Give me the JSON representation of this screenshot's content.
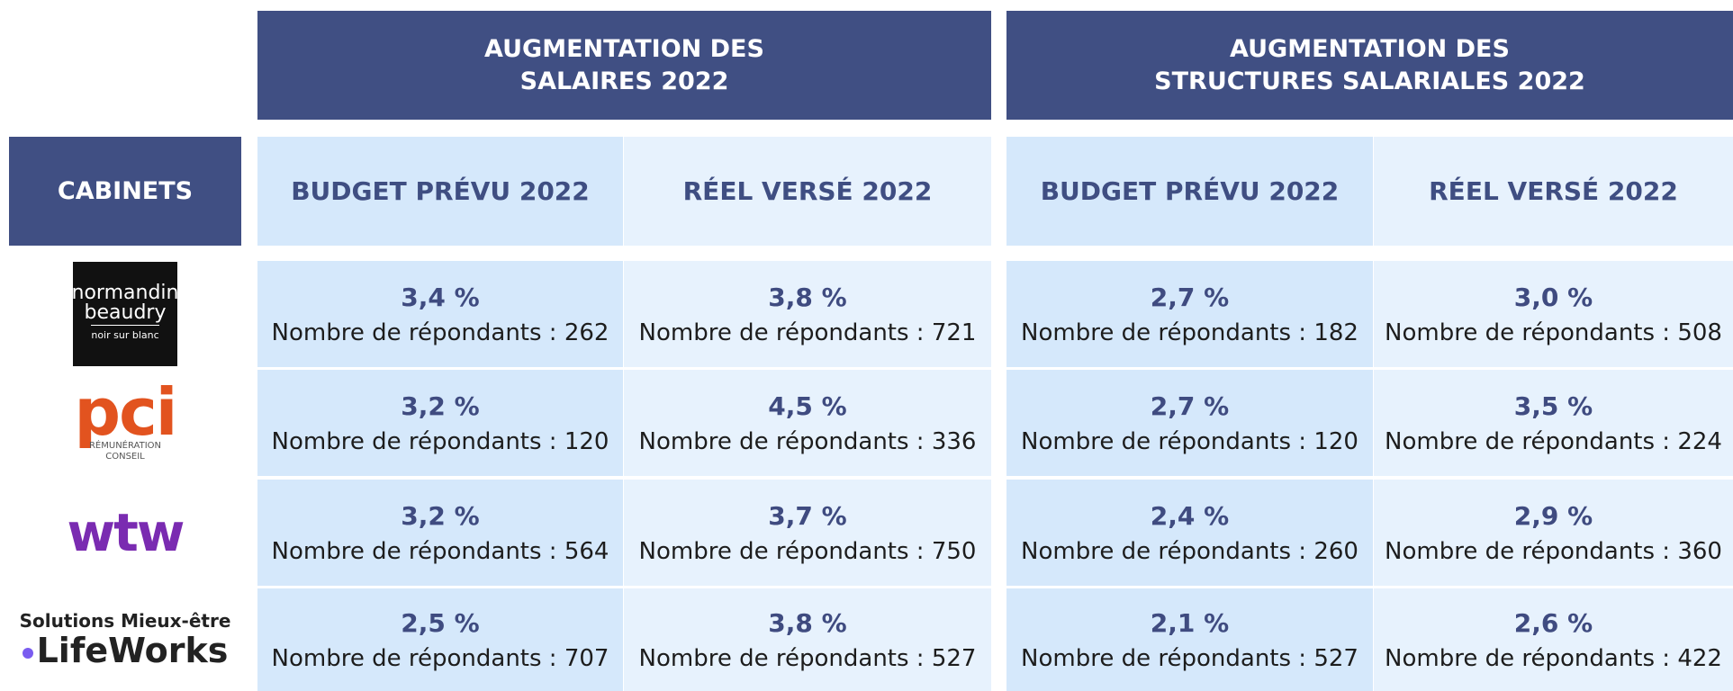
{
  "headers": {
    "groups": [
      [
        "AUGMENTATION DES",
        "SALAIRES 2022"
      ],
      [
        "AUGMENTATION DES",
        "STRUCTURES SALARIALES 2022"
      ]
    ],
    "cabinets": "CABINETS",
    "columns": [
      "BUDGET PRÉVU 2022",
      "RÉEL VERSÉ 2022",
      "BUDGET PRÉVU 2022",
      "RÉEL VERSÉ 2022"
    ]
  },
  "rows": [
    {
      "logo": [
        "normandin",
        "beaudry",
        "noir sur blanc"
      ],
      "cells": [
        {
          "value": "3,4 %",
          "respondents": "Nombre de répondants : 262"
        },
        {
          "value": "3,8 %",
          "respondents": "Nombre de répondants : 721"
        },
        {
          "value": "2,7 %",
          "respondents": "Nombre de répondants : 182"
        },
        {
          "value": "3,0 %",
          "respondents": "Nombre de répondants : 508"
        }
      ]
    },
    {
      "logo": [
        "pci",
        "RÉMUNÉRATION",
        "CONSEIL"
      ],
      "cells": [
        {
          "value": "3,2 %",
          "respondents": "Nombre de répondants : 120"
        },
        {
          "value": "4,5 %",
          "respondents": "Nombre de répondants : 336"
        },
        {
          "value": "2,7 %",
          "respondents": "Nombre de répondants : 120"
        },
        {
          "value": "3,5 %",
          "respondents": "Nombre de répondants : 224"
        }
      ]
    },
    {
      "logo": [
        "wtw"
      ],
      "cells": [
        {
          "value": "3,2 %",
          "respondents": "Nombre de répondants : 564"
        },
        {
          "value": "3,7 %",
          "respondents": "Nombre de répondants : 750"
        },
        {
          "value": "2,4 %",
          "respondents": "Nombre de répondants : 260"
        },
        {
          "value": "2,9 %",
          "respondents": "Nombre de répondants : 360"
        }
      ]
    },
    {
      "logo": [
        "Solutions Mieux-être",
        "LifeWorks"
      ],
      "cells": [
        {
          "value": "2,5 %",
          "respondents": "Nombre de répondants : 707"
        },
        {
          "value": "3,8 %",
          "respondents": "Nombre de répondants : 527"
        },
        {
          "value": "2,1 %",
          "respondents": "Nombre de répondants : 527"
        },
        {
          "value": "2,6 %",
          "respondents": "Nombre de répondants : 422"
        }
      ]
    }
  ]
}
